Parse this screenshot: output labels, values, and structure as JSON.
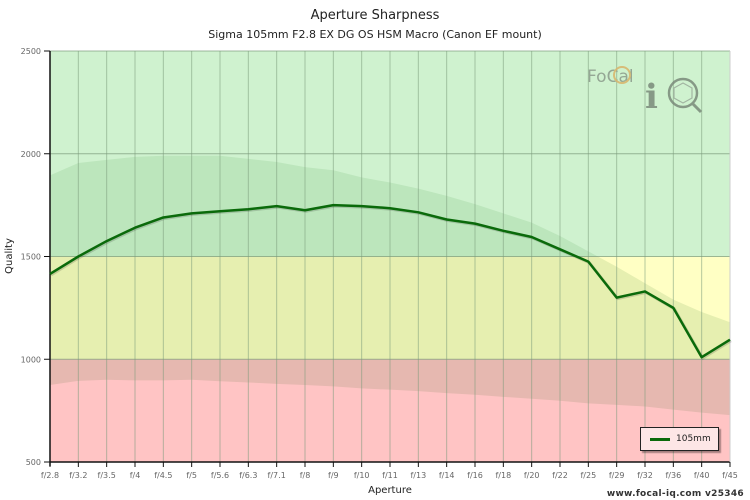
{
  "header": {
    "title": "Aperture Sharpness",
    "subtitle": "Sigma 105mm F2.8 EX DG OS HSM Macro (Canon EF mount)"
  },
  "watermark": {
    "brand_top": "FoCal",
    "brand_bottom": "iQ"
  },
  "footer": {
    "credit": "www.focal-iq.com  v25346"
  },
  "colors": {
    "zone_good": "#cff2cf",
    "zone_good_band": "#bce6bc",
    "zone_mid": "#ffffc4",
    "zone_mid_band": "#e6efb0",
    "zone_bad": "#ffc4c4",
    "zone_bad_band": "#e6b8b0",
    "line": "#0a6a0a",
    "grid": "#7a9a7a"
  },
  "chart_data": {
    "type": "line",
    "title": "Aperture Sharpness",
    "subtitle": "Sigma 105mm F2.8 EX DG OS HSM Macro (Canon EF mount)",
    "xlabel": "Aperture",
    "ylabel": "Quality",
    "ylim": [
      500,
      2500
    ],
    "yticks": [
      500,
      1000,
      1500,
      2000,
      2500
    ],
    "grid": true,
    "legend_position": "bottom-right",
    "categories": [
      "f/2.8",
      "f/3.2",
      "f/3.5",
      "f/4",
      "f/4.5",
      "f/5",
      "f/5.6",
      "f/6.3",
      "f/7.1",
      "f/8",
      "f/9",
      "f/10",
      "f/11",
      "f/13",
      "f/14",
      "f/16",
      "f/18",
      "f/20",
      "f/22",
      "f/25",
      "f/29",
      "f/32",
      "f/36",
      "f/40",
      "f/45"
    ],
    "series": [
      {
        "name": "105mm",
        "values": [
          1415,
          1500,
          1575,
          1640,
          1690,
          1710,
          1720,
          1730,
          1745,
          1725,
          1750,
          1745,
          1735,
          1715,
          1680,
          1660,
          1625,
          1595,
          1535,
          1475,
          1300,
          1330,
          1250,
          1010,
          1095
        ]
      }
    ],
    "zones": [
      {
        "name": "good",
        "from": 1500,
        "to": 2500
      },
      {
        "name": "average",
        "from": 1000,
        "to": 1500
      },
      {
        "name": "poor",
        "from": 500,
        "to": 1000
      }
    ],
    "reference_bands": [
      {
        "name": "upper-range",
        "values": [
          1895,
          1955,
          1970,
          1985,
          1990,
          1990,
          1990,
          1975,
          1960,
          1935,
          1920,
          1885,
          1860,
          1830,
          1795,
          1755,
          1710,
          1665,
          1600,
          1525,
          1450,
          1370,
          1290,
          1230,
          1180
        ]
      },
      {
        "name": "lower-range",
        "values": [
          875,
          895,
          900,
          897,
          897,
          900,
          893,
          887,
          880,
          875,
          868,
          858,
          852,
          845,
          835,
          827,
          817,
          808,
          798,
          785,
          778,
          770,
          755,
          740,
          728
        ]
      }
    ]
  }
}
